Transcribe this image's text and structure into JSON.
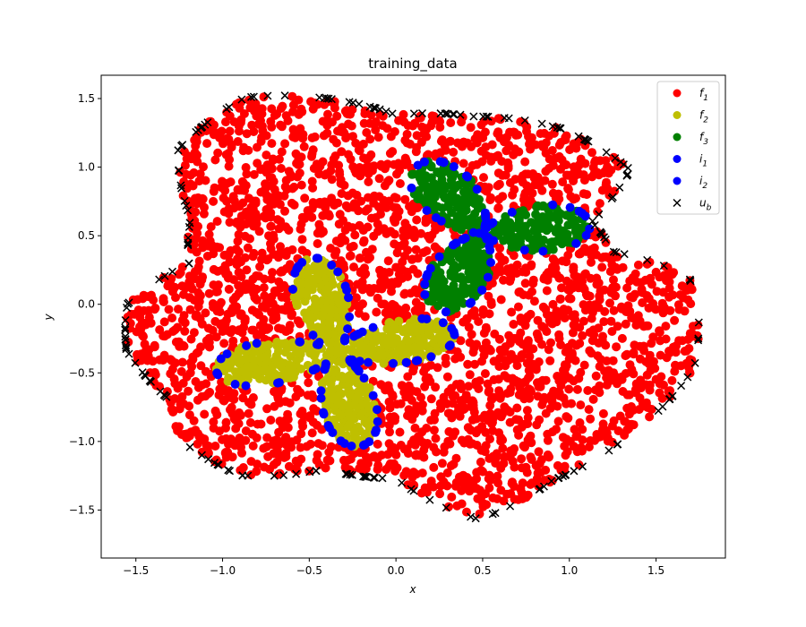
{
  "chart_data": {
    "type": "scatter",
    "title": "training_data",
    "xlabel": "x",
    "ylabel": "y",
    "xlim": [
      -1.7,
      1.9
    ],
    "ylim": [
      -1.85,
      1.67
    ],
    "xticks": [
      {
        "value": -1.5,
        "label": "−1.5"
      },
      {
        "value": -1.0,
        "label": "−1.0"
      },
      {
        "value": -0.5,
        "label": "−0.5"
      },
      {
        "value": 0.0,
        "label": "0.0"
      },
      {
        "value": 0.5,
        "label": "0.5"
      },
      {
        "value": 1.0,
        "label": "1.0"
      },
      {
        "value": 1.5,
        "label": "1.5"
      }
    ],
    "yticks": [
      {
        "value": -1.5,
        "label": "−1.5"
      },
      {
        "value": -1.0,
        "label": "−1.0"
      },
      {
        "value": -0.5,
        "label": "−0.5"
      },
      {
        "value": 0.0,
        "label": "0.0"
      },
      {
        "value": 0.5,
        "label": "0.5"
      },
      {
        "value": 1.0,
        "label": "1.0"
      },
      {
        "value": 1.5,
        "label": "1.5"
      }
    ],
    "grid": false,
    "legend_position": "top-right",
    "series": [
      {
        "name": "f",
        "subscript": "1",
        "marker": "circle",
        "color": "#ff0000",
        "region": "outer domain minus the two inner blobs",
        "approx_count": 2500
      },
      {
        "name": "f",
        "subscript": "2",
        "marker": "circle",
        "color": "#bfbf00",
        "region": "left four-lobed inner blob",
        "approx_count": 800
      },
      {
        "name": "f",
        "subscript": "3",
        "marker": "circle",
        "color": "#008000",
        "region": "upper-right three-lobed inner blob",
        "approx_count": 500
      },
      {
        "name": "i",
        "subscript": "1",
        "marker": "circle",
        "color": "#0000ff",
        "region": "boundary of the f2 blob",
        "approx_count": 100
      },
      {
        "name": "i",
        "subscript": "2",
        "marker": "circle",
        "color": "#0000ff",
        "region": "boundary of the f3 blob",
        "approx_count": 60
      },
      {
        "name": "u",
        "subscript": "b",
        "marker": "x",
        "color": "#000000",
        "region": "outer boundary",
        "approx_count": 200
      }
    ],
    "outer_boundary_polar": {
      "center": [
        0.0,
        0.0
      ],
      "radius_at_angle_deg": [
        [
          0,
          1.74
        ],
        [
          7,
          1.7
        ],
        [
          17,
          1.31
        ],
        [
          28,
          1.28
        ],
        [
          36,
          1.67
        ],
        [
          53,
          1.6
        ],
        [
          72,
          1.44
        ],
        [
          90,
          1.38
        ],
        [
          103,
          1.53
        ],
        [
          120,
          1.74
        ],
        [
          138,
          1.69
        ],
        [
          152,
          1.34
        ],
        [
          166,
          1.23
        ],
        [
          180,
          1.55
        ],
        [
          192,
          1.59
        ],
        [
          208,
          1.48
        ],
        [
          218,
          1.59
        ],
        [
          234,
          1.54
        ],
        [
          251,
          1.27
        ],
        [
          270,
          1.27
        ],
        [
          287,
          1.64
        ],
        [
          305,
          1.57
        ],
        [
          325,
          1.65
        ],
        [
          345,
          1.78
        ],
        [
          360,
          1.74
        ]
      ]
    },
    "inner_blob_f2": {
      "center": [
        -0.35,
        -0.35
      ],
      "radius_formula": "0.4 + 0.3*cos(4*(theta-0.2))",
      "phase_rad": 0.2
    },
    "inner_blob_f3": {
      "center": [
        0.5,
        0.52
      ],
      "radius_formula": "0.32 + 0.30*cos(3*(theta-0.1))",
      "phase_rad": 0.1
    }
  }
}
